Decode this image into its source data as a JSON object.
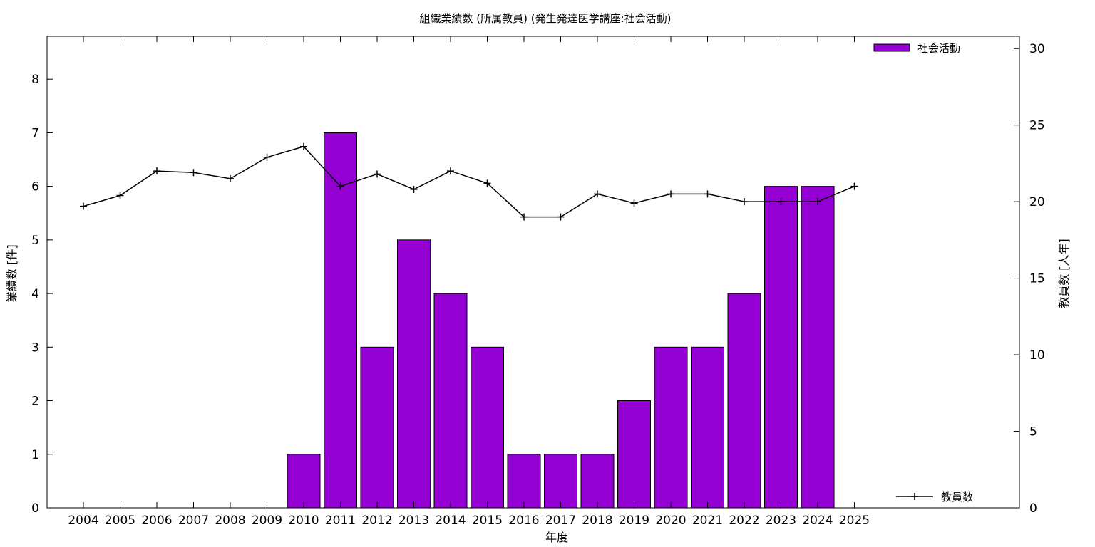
{
  "chart_data": {
    "type": "bar",
    "title": "組織業績数 (所属教員) (発生発達医学講座:社会活動)",
    "xlabel": "年度",
    "ylabel": "業績数 [件]",
    "y2label": "教員数 [人年]",
    "categories": [
      "2004",
      "2005",
      "2006",
      "2007",
      "2008",
      "2009",
      "2010",
      "2011",
      "2012",
      "2013",
      "2014",
      "2015",
      "2016",
      "2017",
      "2018",
      "2019",
      "2020",
      "2021",
      "2022",
      "2023",
      "2024",
      "2025"
    ],
    "series": [
      {
        "name": "社会活動",
        "type": "bar",
        "axis": "left",
        "color": "#9400d3",
        "values": [
          0,
          0,
          0,
          0,
          0,
          0,
          1,
          7,
          3,
          5,
          4,
          3,
          1,
          1,
          1,
          2,
          3,
          3,
          4,
          6,
          6,
          0
        ]
      },
      {
        "name": "教員数",
        "type": "line",
        "axis": "right",
        "color": "#000000",
        "values": [
          19.7,
          20.4,
          22.0,
          21.9,
          21.5,
          22.9,
          23.6,
          21.0,
          21.8,
          20.8,
          22.0,
          21.2,
          19.0,
          19.0,
          20.5,
          19.9,
          20.5,
          20.5,
          20.0,
          20.0,
          20.0,
          21.0
        ]
      }
    ],
    "ylim": [
      0,
      8.8
    ],
    "yticks": [
      0,
      1,
      2,
      3,
      4,
      5,
      6,
      7,
      8
    ],
    "y2lim": [
      0,
      30.8
    ],
    "y2ticks": [
      0,
      5,
      10,
      15,
      20,
      25,
      30
    ],
    "grid": false,
    "legend": [
      "top-right",
      "bottom-right"
    ]
  }
}
